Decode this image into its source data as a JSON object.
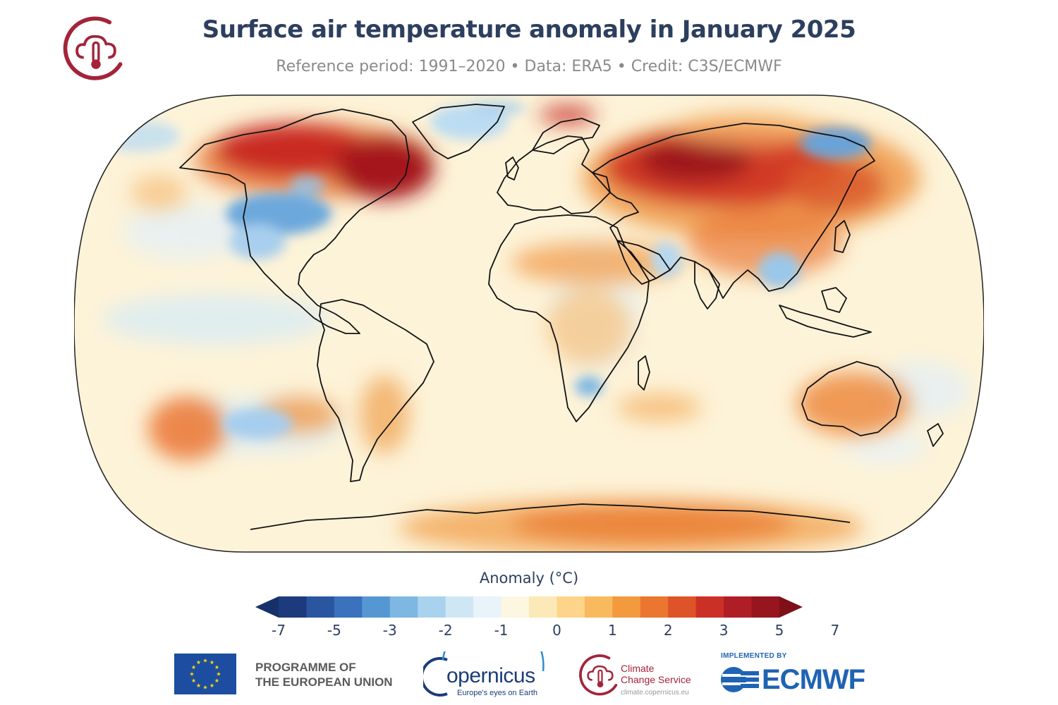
{
  "title": "Surface air temperature anomaly in January 2025",
  "subtitle": "Reference period: 1991–2020 • Data: ERA5 • Credit: C3S/ECMWF",
  "legend": {
    "title": "Anomaly (°C)",
    "ticks": [
      "-7",
      "-5",
      "-3",
      "-2",
      "-1",
      "0",
      "1",
      "2",
      "3",
      "5",
      "7"
    ],
    "colors": [
      "#1c3a7c",
      "#2a56a0",
      "#3a72bd",
      "#5597d3",
      "#7fb7e3",
      "#a9d2ee",
      "#cfe6f5",
      "#e9f3fa",
      "#fdf6e0",
      "#fde9b7",
      "#fcd58a",
      "#f9b95f",
      "#f39a3e",
      "#ea7630",
      "#de5328",
      "#cb3026",
      "#b01e25",
      "#96151f"
    ],
    "under_color": "#16306a",
    "over_color": "#7e1018"
  },
  "map": {
    "projection": "Robinson",
    "ocean_base_color": "#fdf3d8",
    "warm_color": "#cc2b24",
    "cold_color": "#5a9bd6"
  },
  "footer": {
    "eu_line1": "PROGRAMME OF",
    "eu_line2": "THE EUROPEAN UNION",
    "copernicus_word": "opernicus",
    "copernicus_tagline": "Europe's eyes on Earth",
    "ccs_line1": "Climate",
    "ccs_line2": "Change Service",
    "ccs_url": "climate.copernicus.eu",
    "implemented_by": "IMPLEMENTED BY",
    "ecmwf": "ECMWF"
  },
  "colors": {
    "title": "#2d3f5e",
    "c3s_red": "#a3243a",
    "copernicus_blue": "#1a3d7a",
    "ecmwf_blue": "#1f63b3",
    "eu_blue": "#1c4da0",
    "eu_gold": "#ffd800"
  }
}
